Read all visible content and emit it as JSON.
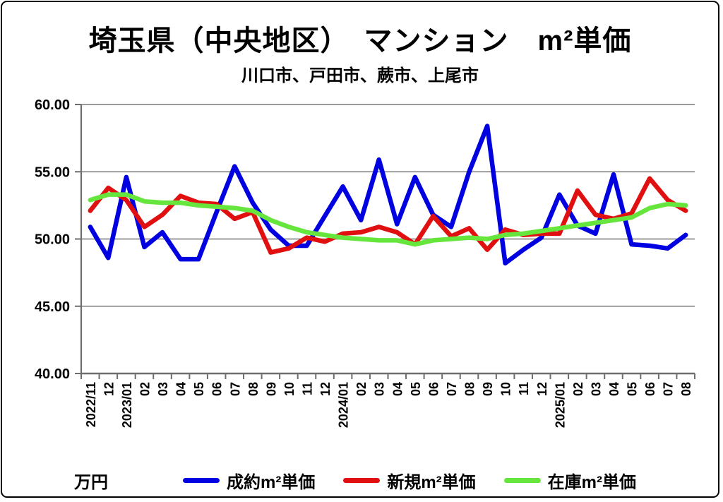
{
  "header": {
    "title": "埼玉県（中央地区）　マンション　m²単価",
    "subtitle": "川口市、戸田市、蕨市、上尾市"
  },
  "chart_data": {
    "type": "line",
    "title": "埼玉県（中央地区）　マンション　m²単価",
    "subtitle": "川口市、戸田市、蕨市、上尾市",
    "xlabel": "",
    "ylabel": "万円",
    "ylim": [
      40,
      60
    ],
    "grid": true,
    "legend_position": "bottom",
    "yticks": [
      "60.00",
      "55.00",
      "50.00",
      "45.00",
      "40.00"
    ],
    "categories": [
      "2022/11",
      "12",
      "2023/01",
      "02",
      "03",
      "04",
      "05",
      "06",
      "07",
      "08",
      "09",
      "10",
      "11",
      "12",
      "2024/01",
      "02",
      "03",
      "04",
      "05",
      "06",
      "07",
      "08",
      "09",
      "10",
      "11",
      "12",
      "2025/01",
      "02",
      "03",
      "04",
      "05",
      "06",
      "07",
      "08"
    ],
    "series": [
      {
        "name": "成約m²単価",
        "color": "#0000E0",
        "values": [
          50.9,
          48.6,
          54.6,
          49.4,
          50.5,
          48.5,
          48.5,
          52.0,
          55.4,
          52.7,
          50.7,
          49.5,
          49.5,
          51.7,
          53.9,
          51.4,
          55.9,
          51.1,
          54.6,
          51.8,
          50.9,
          55.0,
          58.4,
          48.2,
          49.2,
          50.1,
          53.3,
          51.0,
          50.4,
          54.8,
          49.6,
          49.5,
          49.3,
          50.3
        ]
      },
      {
        "name": "新規m²単価",
        "color": "#E01010",
        "values": [
          52.1,
          53.8,
          52.9,
          50.9,
          51.8,
          53.2,
          52.7,
          52.6,
          51.5,
          52.0,
          49.0,
          49.3,
          50.1,
          49.8,
          50.4,
          50.5,
          50.9,
          50.5,
          49.6,
          51.7,
          50.2,
          50.8,
          49.2,
          50.7,
          50.3,
          50.4,
          50.4,
          53.6,
          51.8,
          51.5,
          51.9,
          54.5,
          52.9,
          52.1
        ]
      },
      {
        "name": "在庫m²単価",
        "color": "#66E63C",
        "values": [
          52.9,
          53.3,
          53.3,
          52.8,
          52.7,
          52.7,
          52.5,
          52.4,
          52.3,
          52.1,
          51.4,
          50.9,
          50.5,
          50.3,
          50.1,
          50.0,
          49.9,
          49.9,
          49.6,
          49.9,
          50.0,
          50.1,
          50.0,
          50.3,
          50.4,
          50.6,
          50.8,
          51.0,
          51.2,
          51.4,
          51.6,
          52.3,
          52.6,
          52.5
        ]
      }
    ],
    "axis_color": "#6E6E6E",
    "grid_color": "#8C8C8C"
  }
}
